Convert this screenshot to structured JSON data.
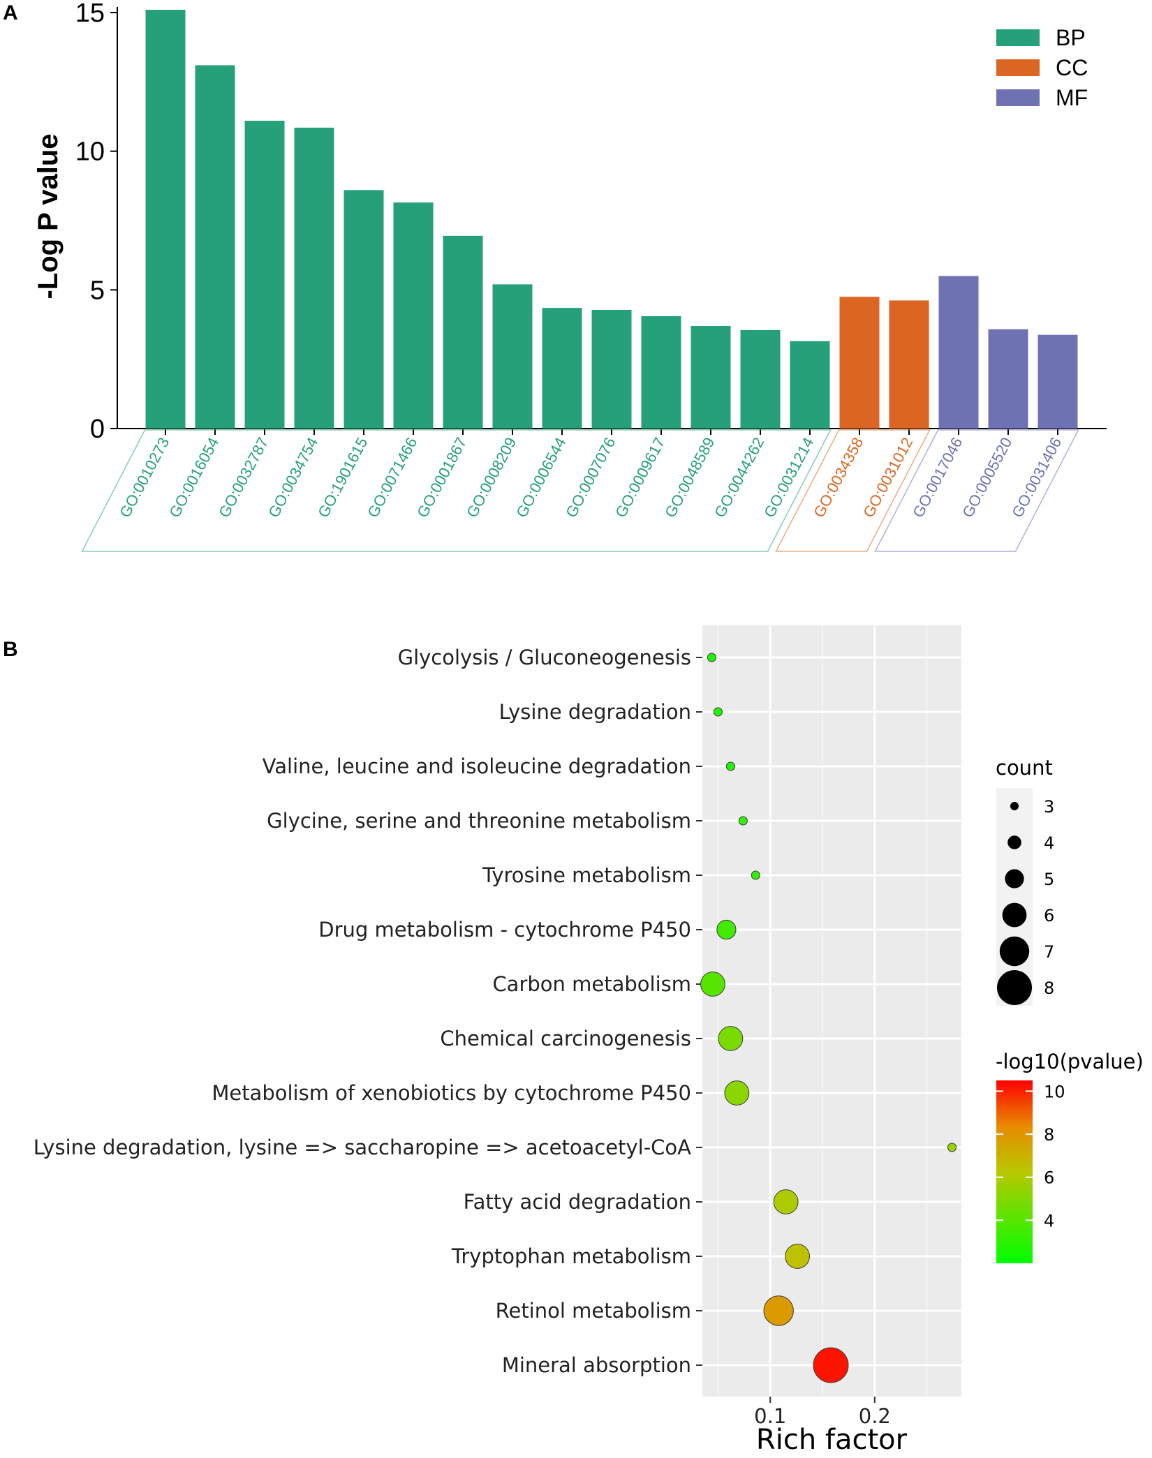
{
  "chart_data": [
    {
      "panel": "A",
      "type": "bar",
      "ylabel": "-Log P value",
      "ylim": [
        0,
        15
      ],
      "yticks": [
        "0",
        "5",
        "10",
        "15"
      ],
      "groups": [
        {
          "name": "BP",
          "color": "#26A07A"
        },
        {
          "name": "CC",
          "color": "#DB6623"
        },
        {
          "name": "MF",
          "color": "#6E72B3"
        }
      ],
      "categories": [
        "GO:0010273",
        "GO:0016054",
        "GO:0032787",
        "GO:0034754",
        "GO:1901615",
        "GO:0071466",
        "GO:0001867",
        "GO:0008209",
        "GO:0006544",
        "GO:0007076",
        "GO:0009617",
        "GO:0048589",
        "GO:0044262",
        "GO:0031214",
        "GO:0034358",
        "GO:0031012",
        "GO:0017046",
        "GO:0005520",
        "GO:0031406"
      ],
      "category_groups": [
        "BP",
        "BP",
        "BP",
        "BP",
        "BP",
        "BP",
        "BP",
        "BP",
        "BP",
        "BP",
        "BP",
        "BP",
        "BP",
        "BP",
        "CC",
        "CC",
        "MF",
        "MF",
        "MF"
      ],
      "values": [
        15.1,
        13.1,
        11.1,
        10.85,
        8.6,
        8.15,
        6.95,
        5.2,
        4.35,
        4.28,
        4.05,
        3.7,
        3.55,
        3.15,
        4.75,
        4.62,
        5.5,
        3.58,
        3.38
      ],
      "legend_position": "top-right"
    },
    {
      "panel": "B",
      "type": "scatter",
      "xlabel": "Rich factor",
      "xlim": [
        0.035,
        0.283
      ],
      "xticks": [
        0.1,
        0.2
      ],
      "xtick_labels": [
        "0.1",
        "0.2"
      ],
      "categories": [
        "Glycolysis / Gluconeogenesis",
        "Lysine degradation",
        "Valine, leucine and isoleucine degradation",
        "Glycine, serine and threonine metabolism",
        "Tyrosine metabolism",
        "Drug metabolism - cytochrome P450",
        "Carbon metabolism",
        "Chemical carcinogenesis",
        "Metabolism of xenobiotics by cytochrome P450",
        "Lysine degradation, lysine => saccharopine => acetoacetyl-CoA",
        "Fatty acid degradation",
        "Tryptophan metabolism",
        "Retinol metabolism",
        "Mineral absorption"
      ],
      "rich_factor": [
        0.044,
        0.05,
        0.062,
        0.074,
        0.086,
        0.058,
        0.045,
        0.062,
        0.068,
        0.274,
        0.115,
        0.126,
        0.108,
        0.158
      ],
      "count": [
        3,
        3,
        3,
        3,
        3,
        5,
        6,
        6,
        6,
        3,
        6,
        6,
        7,
        8
      ],
      "neg_log10_pvalue": [
        2.6,
        2.7,
        2.8,
        3.1,
        3.2,
        3.5,
        4.0,
        4.8,
        5.2,
        5.5,
        6.0,
        6.5,
        7.8,
        10.2
      ],
      "size_legend_title": "count",
      "size_legend": [
        3,
        4,
        5,
        6,
        7,
        8
      ],
      "color_legend_title": "-log10(pvalue)",
      "color_range": [
        2,
        10.5
      ],
      "color_legend_ticks": [
        4,
        6,
        8,
        10
      ],
      "color_low": "#00FF00",
      "color_high": "#FF0000",
      "legend_position": "right"
    }
  ],
  "panel_labels": {
    "a": "A",
    "b": "B"
  }
}
